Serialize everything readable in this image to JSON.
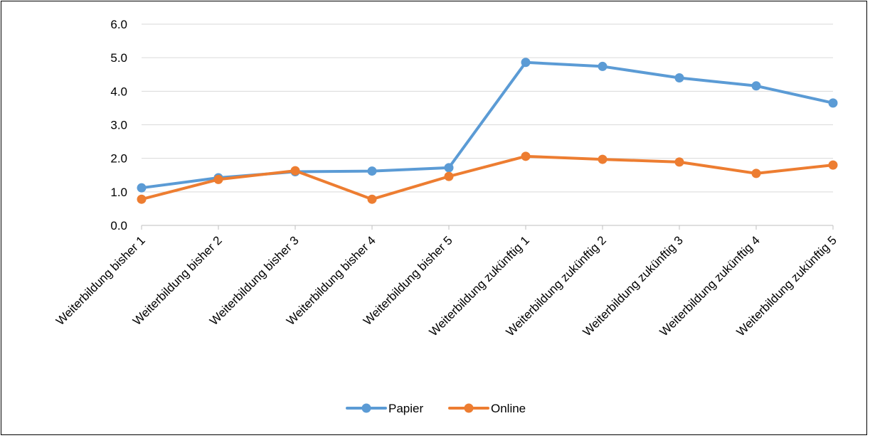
{
  "chart_data": {
    "type": "line",
    "categories": [
      "Weiterbildung bisher 1",
      "Weiterbildung bisher 2",
      "Weiterbildung bisher 3",
      "Weiterbildung bisher 4",
      "Weiterbildung bisher 5",
      "Weiterbildung zukünftig 1",
      "Weiterbildung zukünftig 2",
      "Weiterbildung zukünftig 3",
      "Weiterbildung zukünftig 4",
      "Weiterbildung zukünftig 5"
    ],
    "series": [
      {
        "name": "Papier",
        "color": "#5B9BD5",
        "values": [
          1.12,
          1.42,
          1.6,
          1.62,
          1.72,
          4.86,
          4.74,
          4.4,
          4.16,
          3.65
        ]
      },
      {
        "name": "Online",
        "color": "#ED7D31",
        "values": [
          0.78,
          1.37,
          1.63,
          0.78,
          1.46,
          2.06,
          1.97,
          1.89,
          1.55,
          1.8
        ]
      }
    ],
    "ylim": [
      0,
      6
    ],
    "yticks": [
      "0.0",
      "1.0",
      "2.0",
      "3.0",
      "4.0",
      "5.0",
      "6.0"
    ],
    "grid": true,
    "gridColor": "#D9D9D9",
    "legend": "bottom",
    "title": "",
    "xlabel": "",
    "ylabel": ""
  }
}
